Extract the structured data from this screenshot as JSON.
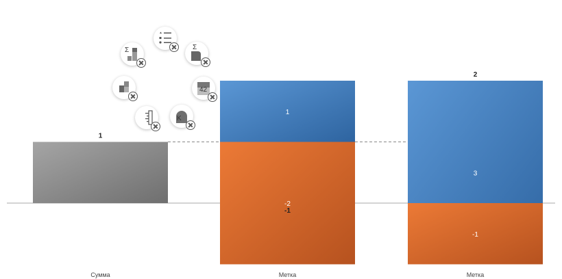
{
  "chart_data": {
    "type": "bar",
    "stacked": true,
    "waterfall": true,
    "categories": [
      "Сумма",
      "Метка",
      "Метка"
    ],
    "ylim": [
      -1,
      2
    ],
    "grid": false,
    "legend": "none",
    "columns": [
      {
        "category": "Сумма",
        "total_label": "1",
        "segments": [
          {
            "base": 0,
            "value": 1,
            "label": "",
            "color": "grey"
          }
        ]
      },
      {
        "category": "Метка",
        "total_label": "-1",
        "segments": [
          {
            "base": 1,
            "value": 1,
            "label": "1",
            "color": "blue"
          },
          {
            "base": 1,
            "value": -2,
            "label": "-2",
            "color": "orange"
          }
        ]
      },
      {
        "category": "Метка",
        "total_label": "2",
        "segments": [
          {
            "base": -1,
            "value": 3,
            "label": "3",
            "color": "blue"
          },
          {
            "base": 0,
            "value": -1,
            "label": "-1",
            "color": "orange"
          }
        ]
      }
    ],
    "connectors": [
      1,
      1
    ]
  },
  "colors": {
    "grey_dark": "#6f6f6f",
    "grey_light": "#a5a5a5",
    "blue_dark": "#2e64a0",
    "blue_light": "#5b97d5",
    "orange_dark": "#b6521f",
    "orange_light": "#ec7a36",
    "axis": "#aaaaaa",
    "connector": "#888888"
  },
  "radial_menu": {
    "items": [
      {
        "icon": "list-legend-icon",
        "text": ""
      },
      {
        "icon": "sum-bar-icon",
        "text": "Σ"
      },
      {
        "icon": "value-label-icon",
        "text": "42"
      },
      {
        "icon": "category-label-icon",
        "text": "K"
      },
      {
        "icon": "ruler-icon",
        "text": ""
      },
      {
        "icon": "waterfall-segment-icon",
        "text": ""
      },
      {
        "icon": "sum-stack-icon",
        "text": "Σ"
      }
    ]
  }
}
